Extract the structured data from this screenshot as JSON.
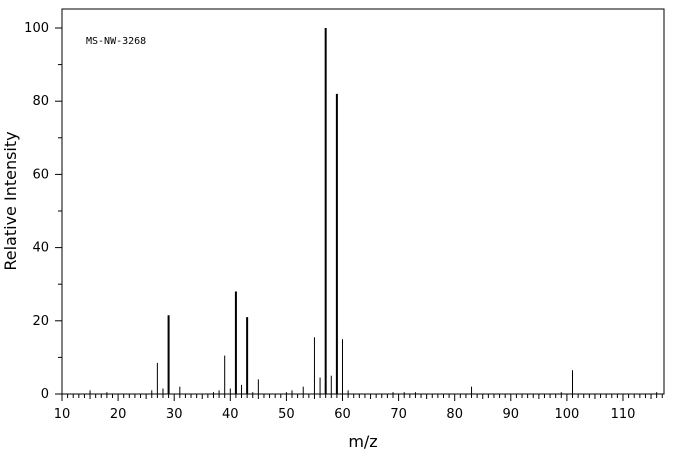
{
  "chart_data": {
    "type": "bar",
    "annotation": "MS-NW-3268",
    "xlabel": "m/z",
    "ylabel": "Relative Intensity",
    "xlim": [
      10,
      118
    ],
    "ylim": [
      0,
      105
    ],
    "x_major_ticks": [
      10,
      20,
      30,
      40,
      50,
      60,
      70,
      80,
      90,
      100,
      110
    ],
    "y_major_ticks": [
      0,
      20,
      40,
      60,
      80,
      100
    ],
    "grid": false,
    "peaks": [
      {
        "mz": 15,
        "intensity": 1.0
      },
      {
        "mz": 18,
        "intensity": 0.5
      },
      {
        "mz": 26,
        "intensity": 1.0
      },
      {
        "mz": 27,
        "intensity": 8.5
      },
      {
        "mz": 28,
        "intensity": 1.5
      },
      {
        "mz": 29,
        "intensity": 21.5
      },
      {
        "mz": 31,
        "intensity": 2.0
      },
      {
        "mz": 37,
        "intensity": 0.5
      },
      {
        "mz": 38,
        "intensity": 1.0
      },
      {
        "mz": 39,
        "intensity": 10.5
      },
      {
        "mz": 40,
        "intensity": 1.5
      },
      {
        "mz": 41,
        "intensity": 28.0
      },
      {
        "mz": 42,
        "intensity": 2.5
      },
      {
        "mz": 43,
        "intensity": 21.0
      },
      {
        "mz": 44,
        "intensity": 0.5
      },
      {
        "mz": 45,
        "intensity": 4.0
      },
      {
        "mz": 50,
        "intensity": 0.5
      },
      {
        "mz": 51,
        "intensity": 1.0
      },
      {
        "mz": 53,
        "intensity": 2.0
      },
      {
        "mz": 55,
        "intensity": 15.5
      },
      {
        "mz": 56,
        "intensity": 4.5
      },
      {
        "mz": 57,
        "intensity": 100.0
      },
      {
        "mz": 58,
        "intensity": 5.0
      },
      {
        "mz": 59,
        "intensity": 82.0
      },
      {
        "mz": 60,
        "intensity": 15.0
      },
      {
        "mz": 61,
        "intensity": 1.0
      },
      {
        "mz": 69,
        "intensity": 0.5
      },
      {
        "mz": 71,
        "intensity": 0.5
      },
      {
        "mz": 73,
        "intensity": 0.5
      },
      {
        "mz": 83,
        "intensity": 2.0
      },
      {
        "mz": 99,
        "intensity": 0.5
      },
      {
        "mz": 101,
        "intensity": 6.5
      },
      {
        "mz": 116,
        "intensity": 0.5
      }
    ]
  }
}
